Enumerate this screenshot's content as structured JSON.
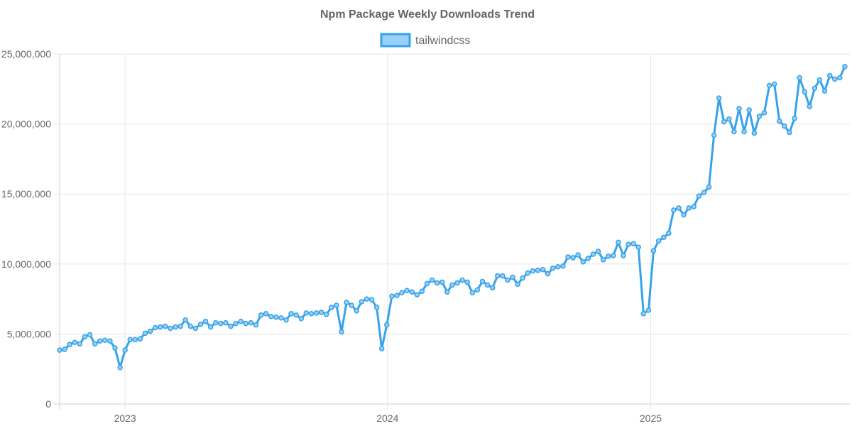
{
  "chart_data": {
    "type": "line",
    "title": "Npm Package Weekly Downloads Trend",
    "xlabel": "",
    "ylabel": "",
    "legend_position": "top-center",
    "grid": true,
    "ylim": [
      0,
      25000000
    ],
    "y_ticks": [
      0,
      5000000,
      10000000,
      15000000,
      20000000,
      25000000
    ],
    "y_tick_labels": [
      "0",
      "5,000,000",
      "10,000,000",
      "15,000,000",
      "20,000,000",
      "25,000,000"
    ],
    "x_ticks": [
      "2023-01-01",
      "2024-01-01",
      "2025-01-01"
    ],
    "x_tick_labels": [
      "2023",
      "2024",
      "2025"
    ],
    "x_start": "2022-10-02",
    "x_end": "2025-10-05",
    "series": [
      {
        "name": "tailwindcss",
        "color": "#36a2eb",
        "fill": "#9ad0f5",
        "points": [
          [
            "2022-10-02",
            3850000
          ],
          [
            "2022-10-09",
            3900000
          ],
          [
            "2022-10-16",
            4250000
          ],
          [
            "2022-10-23",
            4400000
          ],
          [
            "2022-10-30",
            4300000
          ],
          [
            "2022-11-06",
            4800000
          ],
          [
            "2022-11-13",
            4950000
          ],
          [
            "2022-11-20",
            4300000
          ],
          [
            "2022-11-27",
            4500000
          ],
          [
            "2022-12-04",
            4550000
          ],
          [
            "2022-12-11",
            4500000
          ],
          [
            "2022-12-18",
            4000000
          ],
          [
            "2022-12-25",
            2600000
          ],
          [
            "2023-01-01",
            3850000
          ],
          [
            "2023-01-08",
            4600000
          ],
          [
            "2023-01-15",
            4600000
          ],
          [
            "2023-01-22",
            4650000
          ],
          [
            "2023-01-29",
            5050000
          ],
          [
            "2023-02-05",
            5200000
          ],
          [
            "2023-02-12",
            5450000
          ],
          [
            "2023-02-19",
            5500000
          ],
          [
            "2023-02-26",
            5550000
          ],
          [
            "2023-03-05",
            5400000
          ],
          [
            "2023-03-12",
            5500000
          ],
          [
            "2023-03-19",
            5550000
          ],
          [
            "2023-03-26",
            6000000
          ],
          [
            "2023-04-02",
            5550000
          ],
          [
            "2023-04-09",
            5400000
          ],
          [
            "2023-04-16",
            5700000
          ],
          [
            "2023-04-23",
            5900000
          ],
          [
            "2023-04-30",
            5500000
          ],
          [
            "2023-05-07",
            5800000
          ],
          [
            "2023-05-14",
            5750000
          ],
          [
            "2023-05-21",
            5800000
          ],
          [
            "2023-05-28",
            5550000
          ],
          [
            "2023-06-04",
            5750000
          ],
          [
            "2023-06-11",
            5900000
          ],
          [
            "2023-06-18",
            5750000
          ],
          [
            "2023-06-25",
            5800000
          ],
          [
            "2023-07-02",
            5650000
          ],
          [
            "2023-07-09",
            6350000
          ],
          [
            "2023-07-16",
            6450000
          ],
          [
            "2023-07-23",
            6250000
          ],
          [
            "2023-07-30",
            6200000
          ],
          [
            "2023-08-06",
            6150000
          ],
          [
            "2023-08-13",
            6000000
          ],
          [
            "2023-08-20",
            6450000
          ],
          [
            "2023-08-27",
            6350000
          ],
          [
            "2023-09-03",
            6100000
          ],
          [
            "2023-09-10",
            6500000
          ],
          [
            "2023-09-17",
            6450000
          ],
          [
            "2023-09-24",
            6500000
          ],
          [
            "2023-10-01",
            6550000
          ],
          [
            "2023-10-08",
            6400000
          ],
          [
            "2023-10-15",
            6900000
          ],
          [
            "2023-10-22",
            7050000
          ],
          [
            "2023-10-29",
            5150000
          ],
          [
            "2023-11-05",
            7250000
          ],
          [
            "2023-11-12",
            7050000
          ],
          [
            "2023-11-19",
            6650000
          ],
          [
            "2023-11-26",
            7300000
          ],
          [
            "2023-12-03",
            7500000
          ],
          [
            "2023-12-10",
            7450000
          ],
          [
            "2023-12-17",
            6900000
          ],
          [
            "2023-12-24",
            3950000
          ],
          [
            "2023-12-31",
            5650000
          ],
          [
            "2024-01-07",
            7700000
          ],
          [
            "2024-01-14",
            7750000
          ],
          [
            "2024-01-21",
            7950000
          ],
          [
            "2024-01-28",
            8100000
          ],
          [
            "2024-02-04",
            8000000
          ],
          [
            "2024-02-11",
            7800000
          ],
          [
            "2024-02-18",
            8050000
          ],
          [
            "2024-02-25",
            8600000
          ],
          [
            "2024-03-03",
            8850000
          ],
          [
            "2024-03-10",
            8650000
          ],
          [
            "2024-03-17",
            8700000
          ],
          [
            "2024-03-24",
            8000000
          ],
          [
            "2024-03-31",
            8500000
          ],
          [
            "2024-04-07",
            8650000
          ],
          [
            "2024-04-14",
            8850000
          ],
          [
            "2024-04-21",
            8700000
          ],
          [
            "2024-04-28",
            7950000
          ],
          [
            "2024-05-05",
            8150000
          ],
          [
            "2024-05-12",
            8750000
          ],
          [
            "2024-05-19",
            8500000
          ],
          [
            "2024-05-26",
            8300000
          ],
          [
            "2024-06-02",
            9150000
          ],
          [
            "2024-06-09",
            9150000
          ],
          [
            "2024-06-16",
            8850000
          ],
          [
            "2024-06-23",
            9050000
          ],
          [
            "2024-06-30",
            8550000
          ],
          [
            "2024-07-07",
            9000000
          ],
          [
            "2024-07-14",
            9350000
          ],
          [
            "2024-07-21",
            9500000
          ],
          [
            "2024-07-28",
            9550000
          ],
          [
            "2024-08-04",
            9600000
          ],
          [
            "2024-08-11",
            9300000
          ],
          [
            "2024-08-18",
            9700000
          ],
          [
            "2024-08-25",
            9800000
          ],
          [
            "2024-09-01",
            9850000
          ],
          [
            "2024-09-08",
            10500000
          ],
          [
            "2024-09-15",
            10450000
          ],
          [
            "2024-09-22",
            10650000
          ],
          [
            "2024-09-29",
            10150000
          ],
          [
            "2024-10-06",
            10400000
          ],
          [
            "2024-10-13",
            10700000
          ],
          [
            "2024-10-20",
            10900000
          ],
          [
            "2024-10-27",
            10300000
          ],
          [
            "2024-11-03",
            10550000
          ],
          [
            "2024-11-10",
            10600000
          ],
          [
            "2024-11-17",
            11550000
          ],
          [
            "2024-11-24",
            10600000
          ],
          [
            "2024-12-01",
            11400000
          ],
          [
            "2024-12-08",
            11450000
          ],
          [
            "2024-12-15",
            11200000
          ],
          [
            "2024-12-22",
            6450000
          ],
          [
            "2024-12-29",
            6700000
          ],
          [
            "2025-01-05",
            10950000
          ],
          [
            "2025-01-12",
            11650000
          ],
          [
            "2025-01-19",
            11900000
          ],
          [
            "2025-01-26",
            12200000
          ],
          [
            "2025-02-02",
            13850000
          ],
          [
            "2025-02-09",
            14000000
          ],
          [
            "2025-02-16",
            13500000
          ],
          [
            "2025-02-23",
            14000000
          ],
          [
            "2025-03-02",
            14100000
          ],
          [
            "2025-03-09",
            14850000
          ],
          [
            "2025-03-16",
            15100000
          ],
          [
            "2025-03-23",
            15500000
          ],
          [
            "2025-03-30",
            19200000
          ],
          [
            "2025-04-06",
            21850000
          ],
          [
            "2025-04-13",
            20150000
          ],
          [
            "2025-04-20",
            20350000
          ],
          [
            "2025-04-27",
            19450000
          ],
          [
            "2025-05-04",
            21100000
          ],
          [
            "2025-05-11",
            19450000
          ],
          [
            "2025-05-18",
            21000000
          ],
          [
            "2025-05-25",
            19350000
          ],
          [
            "2025-06-01",
            20550000
          ],
          [
            "2025-06-08",
            20800000
          ],
          [
            "2025-06-15",
            22750000
          ],
          [
            "2025-06-22",
            22850000
          ],
          [
            "2025-06-29",
            20200000
          ],
          [
            "2025-07-06",
            19850000
          ],
          [
            "2025-07-13",
            19400000
          ],
          [
            "2025-07-20",
            20400000
          ],
          [
            "2025-07-27",
            23300000
          ],
          [
            "2025-08-03",
            22300000
          ],
          [
            "2025-08-10",
            21250000
          ],
          [
            "2025-08-17",
            22550000
          ],
          [
            "2025-08-24",
            23150000
          ],
          [
            "2025-08-31",
            22350000
          ],
          [
            "2025-09-07",
            23450000
          ],
          [
            "2025-09-14",
            23200000
          ],
          [
            "2025-09-21",
            23300000
          ],
          [
            "2025-09-28",
            24100000
          ]
        ]
      }
    ]
  }
}
